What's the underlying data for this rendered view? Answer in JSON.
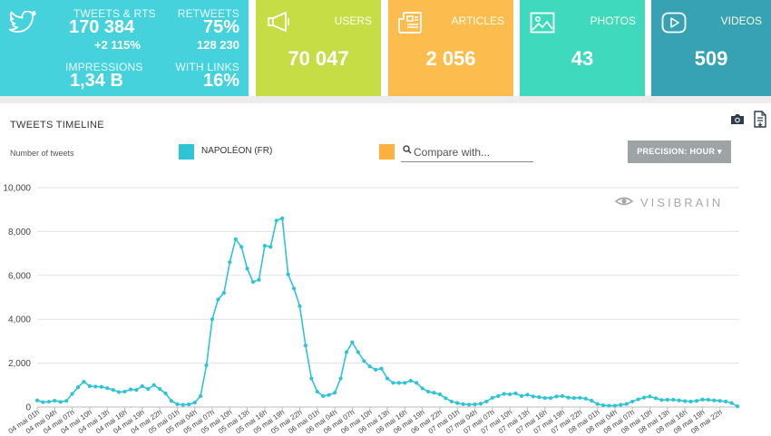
{
  "twitter": {
    "tweets_label": "TWEETS & RTS",
    "tweets_value": "170 384",
    "tweets_growth": "+2 115%",
    "retweets_label": "RETWEETS",
    "retweets_pct": "75%",
    "retweets_value": "128 230",
    "impressions_label": "IMPRESSIONS",
    "impressions_value": "1,34 B",
    "links_label": "WITH LINKS",
    "links_pct": "16%"
  },
  "users": {
    "label": "USERS",
    "value": "70 047"
  },
  "articles": {
    "label": "ARTICLES",
    "value": "2 056"
  },
  "photos": {
    "label": "PHOTOS",
    "value": "43"
  },
  "videos": {
    "label": "VIDEOS",
    "value": "509"
  },
  "timeline": {
    "title": "TWEETS TIMELINE",
    "y_label": "Number of tweets",
    "legend_name": "NAPOLÉON (FR)",
    "legend_color": "#2ec4d6",
    "compare_color": "#fbb040",
    "compare_placeholder": "Compare with...",
    "precision_label": "PRECISION: HOUR ▾",
    "watermark": "VISIBRAIN"
  },
  "colors": {
    "twitter_tile": "#45d2dd",
    "users_tile": "#c6dd45",
    "articles_tile": "#fdbd4e",
    "photos_tile": "#3fd9bd",
    "videos_tile": "#36a2b3",
    "series_line": "#2ec4d6"
  },
  "icons": {
    "twitter": "twitter-bird-icon",
    "users": "megaphone-icon",
    "articles": "newspaper-icon",
    "photos": "photo-icon",
    "videos": "play-icon",
    "camera": "camera-icon",
    "export": "document-export-icon"
  },
  "chart_data": {
    "type": "line",
    "title": "",
    "xlabel": "",
    "ylabel": "Number of tweets",
    "ylim": [
      0,
      10000
    ],
    "yticks": [
      "0",
      "2,000",
      "4,000",
      "6,000",
      "8,000",
      "10,000"
    ],
    "grid": true,
    "x_tick_labels": [
      "04 mai 01h",
      "04 mai 04h",
      "04 mai 07h",
      "04 mai 10h",
      "04 mai 13h",
      "04 mai 16h",
      "04 mai 19h",
      "04 mai 22h",
      "05 mai 01h",
      "05 mai 04h",
      "05 mai 07h",
      "05 mai 10h",
      "05 mai 13h",
      "05 mai 16h",
      "05 mai 19h",
      "05 mai 22h",
      "06 mai 01h",
      "06 mai 04h",
      "06 mai 07h",
      "06 mai 10h",
      "06 mai 13h",
      "06 mai 16h",
      "06 mai 19h",
      "06 mai 22h",
      "07 mai 01h",
      "07 mai 04h",
      "07 mai 07h",
      "07 mai 10h",
      "07 mai 13h",
      "07 mai 16h",
      "07 mai 19h",
      "07 mai 22h",
      "08 mai 01h",
      "08 mai 04h",
      "08 mai 07h",
      "08 mai 10h",
      "08 mai 13h",
      "08 mai 16h",
      "08 mai 19h",
      "08 mai 22h"
    ],
    "series": [
      {
        "name": "NAPOLÉON (FR)",
        "values": [
          300,
          220,
          240,
          290,
          230,
          280,
          600,
          900,
          1150,
          950,
          930,
          920,
          860,
          780,
          680,
          700,
          800,
          780,
          950,
          820,
          1000,
          820,
          620,
          280,
          130,
          100,
          120,
          200,
          500,
          1900,
          4000,
          4900,
          5200,
          6600,
          7650,
          7300,
          6300,
          5700,
          5800,
          7350,
          7300,
          8500,
          8600,
          6050,
          5400,
          4600,
          2800,
          1300,
          700,
          500,
          550,
          650,
          1300,
          2500,
          2950,
          2500,
          2100,
          1850,
          1700,
          1750,
          1300,
          1100,
          1100,
          1100,
          1200,
          1100,
          850,
          700,
          650,
          580,
          400,
          250,
          180,
          130,
          110,
          120,
          150,
          250,
          420,
          500,
          600,
          580,
          620,
          500,
          560,
          480,
          450,
          410,
          410,
          480,
          500,
          430,
          410,
          420,
          380,
          290,
          140,
          80,
          60,
          60,
          100,
          140,
          250,
          350,
          430,
          480,
          400,
          320,
          330,
          330,
          300,
          270,
          250,
          280,
          340,
          330,
          300,
          280,
          250,
          180,
          30
        ]
      }
    ]
  }
}
